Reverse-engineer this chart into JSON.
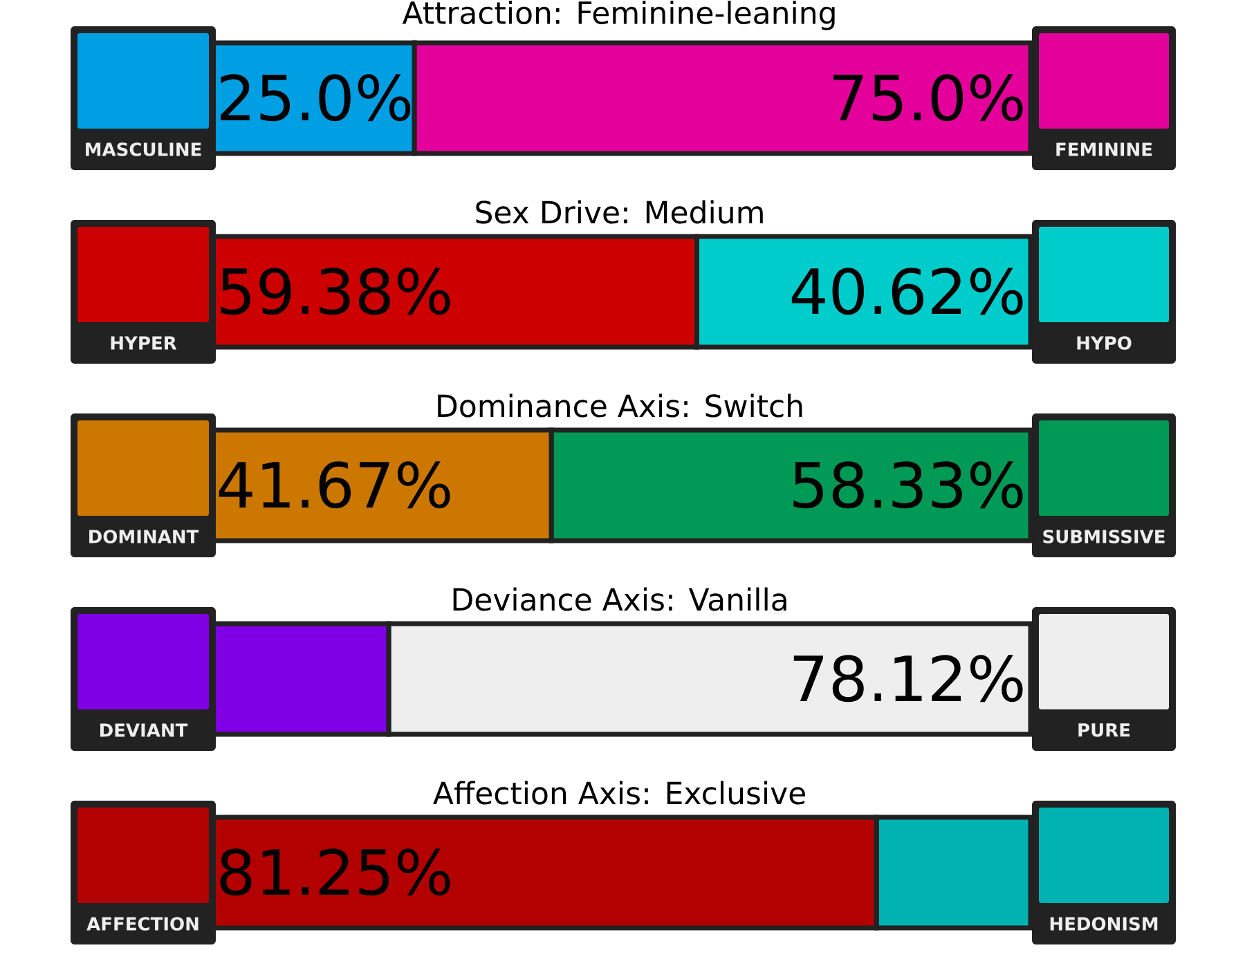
{
  "chart_data": [
    {
      "type": "bar",
      "orientation": "horizontal",
      "stacked": true,
      "title": "Attraction: Feminine-leaning",
      "categories": [
        null
      ],
      "series": [
        {
          "name": "MASCULINE",
          "color": "#009ee3",
          "values": [
            25.0
          ],
          "value_labels": [
            "25.0%"
          ]
        },
        {
          "name": "FEMININE",
          "color": "#e4009b",
          "values": [
            75.0
          ],
          "value_labels": [
            "75.0%"
          ]
        }
      ]
    },
    {
      "type": "bar",
      "orientation": "horizontal",
      "stacked": true,
      "title": "Sex Drive: Medium",
      "categories": [
        null
      ],
      "series": [
        {
          "name": "HYPER",
          "color": "#cc0000",
          "values": [
            59.38
          ],
          "value_labels": [
            "59.38%"
          ]
        },
        {
          "name": "HYPO",
          "color": "#00cccc",
          "values": [
            40.62
          ],
          "value_labels": [
            "40.62%"
          ]
        }
      ]
    },
    {
      "type": "bar",
      "orientation": "horizontal",
      "stacked": true,
      "title": "Dominance Axis: Switch",
      "categories": [
        null
      ],
      "series": [
        {
          "name": "DOMINANT",
          "color": "#cc7700",
          "values": [
            41.67
          ],
          "value_labels": [
            "41.67%"
          ]
        },
        {
          "name": "SUBMISSIVE",
          "color": "#009955",
          "values": [
            58.33
          ],
          "value_labels": [
            "58.33%"
          ]
        }
      ]
    },
    {
      "type": "bar",
      "orientation": "horizontal",
      "stacked": true,
      "title": "Deviance Axis: Vanilla",
      "categories": [
        null
      ],
      "series": [
        {
          "name": "DEVIANT",
          "color": "#8000e6",
          "values": [
            21.88
          ],
          "value_labels": [
            null
          ]
        },
        {
          "name": "PURE",
          "color": "#eeeeee",
          "values": [
            78.12
          ],
          "value_labels": [
            "78.12%"
          ]
        }
      ]
    },
    {
      "type": "bar",
      "orientation": "horizontal",
      "stacked": true,
      "title": "Affection Axis: Exclusive",
      "categories": [
        null
      ],
      "series": [
        {
          "name": "AFFECTION",
          "color": "#b30000",
          "values": [
            81.25
          ],
          "value_labels": [
            "81.25%"
          ]
        },
        {
          "name": "HEDONISM",
          "color": "#00b3b3",
          "values": [
            18.75
          ],
          "value_labels": [
            null
          ]
        }
      ]
    }
  ]
}
